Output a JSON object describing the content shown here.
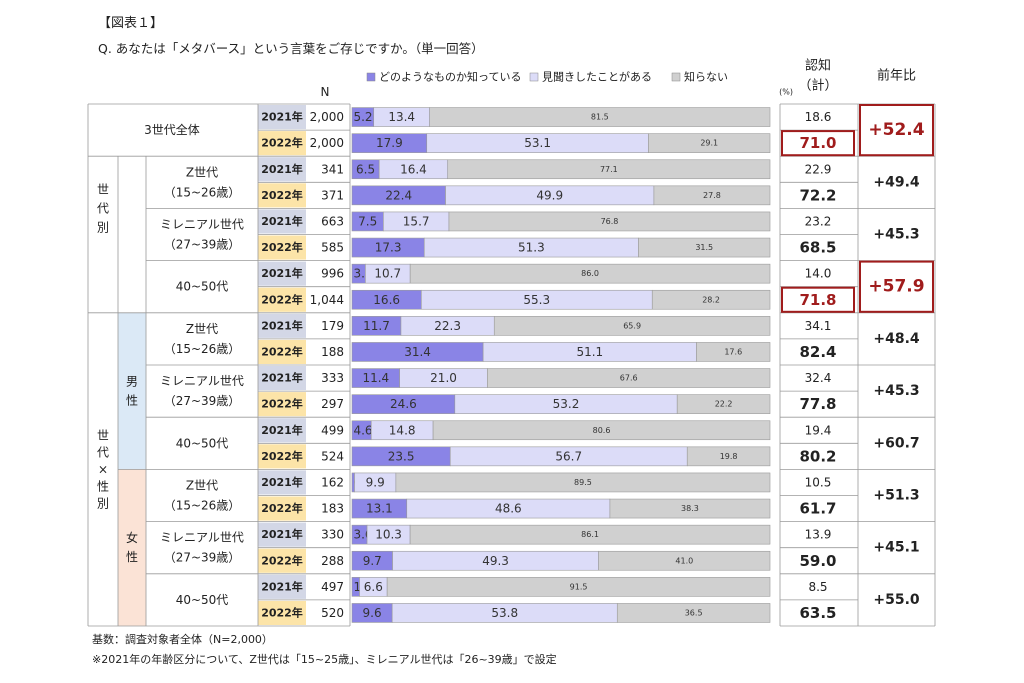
{
  "figure_label": "【図表１】",
  "question": "Q. あなたは「メタバース」という言葉をご存じですか。（単一回答）",
  "n_header": "N",
  "unit": "(%)",
  "col_recognition": "認知（計）",
  "col_yoy": "前年比",
  "colors": {
    "know": "#8a84e6",
    "heard": "#dcdcf8",
    "unknown": "#d0d0d0",
    "yr2021": "#d3d7e6",
    "yr2022": "#fce4a8",
    "male": "#dbe9f6",
    "female": "#fbe3d6",
    "highlight": "#a01c1c"
  },
  "groups": {
    "all": "3世代全体",
    "by_gen_label": "世代別",
    "by_gen_sex_label": "世代×性別",
    "male": "男性",
    "female": "女性",
    "genz": "Z世代",
    "genz_age": "（15~26歳）",
    "millennial": "ミレニアル世代",
    "millennial_age": "（27~39歳）",
    "over40": "40~50代"
  },
  "chart_data": {
    "type": "bar",
    "title": "Q. あなたは「メタバース」という言葉をご存じですか。（単一回答）",
    "legend": [
      "どのようなものか知っている",
      "見聞きしたことがある",
      "知らない"
    ],
    "series_names": [
      "どのようなものか知っている",
      "見聞きしたことがある",
      "知らない"
    ],
    "rows": [
      {
        "year": "2021年",
        "n": "2,000",
        "values": [
          5.2,
          13.4,
          81.5
        ],
        "recog": "18.6"
      },
      {
        "year": "2022年",
        "n": "2,000",
        "values": [
          17.9,
          53.1,
          29.1
        ],
        "recog": "71.0"
      },
      {
        "year": "2021年",
        "n": "341",
        "values": [
          6.5,
          16.4,
          77.1
        ],
        "recog": "22.9"
      },
      {
        "year": "2022年",
        "n": "371",
        "values": [
          22.4,
          49.9,
          27.8
        ],
        "recog": "72.2"
      },
      {
        "year": "2021年",
        "n": "663",
        "values": [
          7.5,
          15.7,
          76.8
        ],
        "recog": "23.2"
      },
      {
        "year": "2022年",
        "n": "585",
        "values": [
          17.3,
          51.3,
          31.5
        ],
        "recog": "68.5"
      },
      {
        "year": "2021年",
        "n": "996",
        "values": [
          3.2,
          10.7,
          86.0
        ],
        "recog": "14.0"
      },
      {
        "year": "2022年",
        "n": "1,044",
        "values": [
          16.6,
          55.3,
          28.2
        ],
        "recog": "71.8"
      },
      {
        "year": "2021年",
        "n": "179",
        "values": [
          11.7,
          22.3,
          65.9
        ],
        "recog": "34.1"
      },
      {
        "year": "2022年",
        "n": "188",
        "values": [
          31.4,
          51.1,
          17.6
        ],
        "recog": "82.4"
      },
      {
        "year": "2021年",
        "n": "333",
        "values": [
          11.4,
          21.0,
          67.6
        ],
        "recog": "32.4"
      },
      {
        "year": "2022年",
        "n": "297",
        "values": [
          24.6,
          53.2,
          22.2
        ],
        "recog": "77.8"
      },
      {
        "year": "2021年",
        "n": "499",
        "values": [
          4.6,
          14.8,
          80.6
        ],
        "recog": "19.4"
      },
      {
        "year": "2022年",
        "n": "524",
        "values": [
          23.5,
          56.7,
          19.8
        ],
        "recog": "80.2"
      },
      {
        "year": "2021年",
        "n": "162",
        "values": [
          0.6,
          9.9,
          89.5
        ],
        "recog": "10.5"
      },
      {
        "year": "2022年",
        "n": "183",
        "values": [
          13.1,
          48.6,
          38.3
        ],
        "recog": "61.7"
      },
      {
        "year": "2021年",
        "n": "330",
        "values": [
          3.6,
          10.3,
          86.1
        ],
        "recog": "13.9"
      },
      {
        "year": "2022年",
        "n": "288",
        "values": [
          9.7,
          49.3,
          41.0
        ],
        "recog": "59.0"
      },
      {
        "year": "2021年",
        "n": "497",
        "values": [
          1.8,
          6.6,
          91.5
        ],
        "recog": "8.5"
      },
      {
        "year": "2022年",
        "n": "520",
        "values": [
          9.6,
          53.8,
          36.5
        ],
        "recog": "63.5"
      }
    ],
    "yoy": [
      "+52.4",
      "+49.4",
      "+45.3",
      "+57.9",
      "+48.4",
      "+45.3",
      "+60.7",
      "+51.3",
      "+45.1",
      "+55.0"
    ],
    "highlighted_groups": [
      0,
      3
    ],
    "xlim": [
      0,
      100
    ]
  },
  "footnote1": "基数：調査対象者全体（N=2,000）",
  "footnote2": "※2021年の年齢区分について、Z世代は「15~25歳」、ミレニアル世代は「26~39歳」で設定"
}
